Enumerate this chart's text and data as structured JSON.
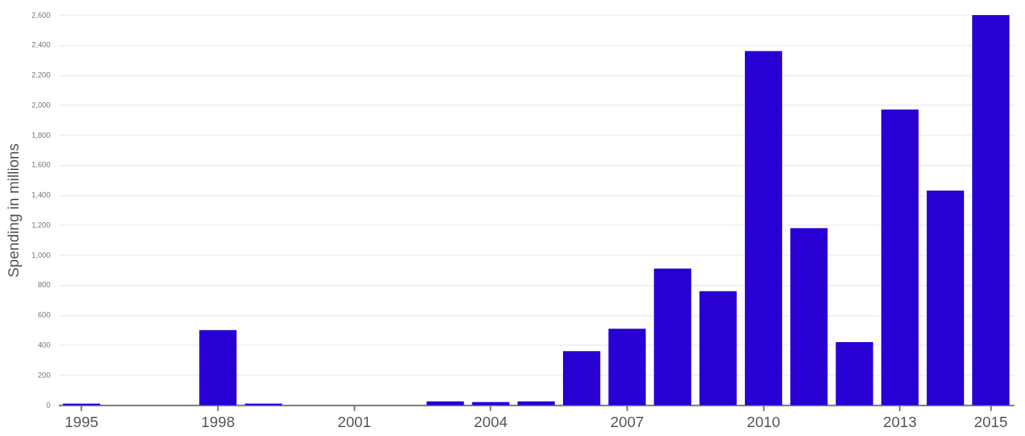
{
  "chart_data": {
    "type": "bar",
    "ylabel": "Spending in millions",
    "categories": [
      "1995",
      null,
      null,
      "1998",
      null,
      null,
      "2001",
      null,
      null,
      "2004",
      null,
      null,
      "2007",
      null,
      null,
      "2010",
      null,
      null,
      "2013",
      null,
      "2015"
    ],
    "values": [
      10,
      0,
      0,
      500,
      10,
      0,
      0,
      0,
      25,
      20,
      25,
      360,
      510,
      910,
      760,
      2360,
      1180,
      420,
      1970,
      1430,
      2600
    ],
    "color": "#2800d4",
    "ylim": [
      0,
      2600
    ],
    "yticks": [
      0,
      200,
      400,
      600,
      800,
      {
        "value": 1000,
        "label": "1,000"
      },
      {
        "value": 1200,
        "label": "1,200"
      },
      {
        "value": 1400,
        "label": "1,400"
      },
      {
        "value": 1600,
        "label": "1,600"
      },
      {
        "value": 1800,
        "label": "1,800"
      },
      {
        "value": 2000,
        "label": "2,000"
      },
      {
        "value": 2200,
        "label": "2,200"
      },
      {
        "value": 2400,
        "label": "2,400"
      },
      {
        "value": 2600,
        "label": "2,600"
      }
    ],
    "grid": "y"
  }
}
